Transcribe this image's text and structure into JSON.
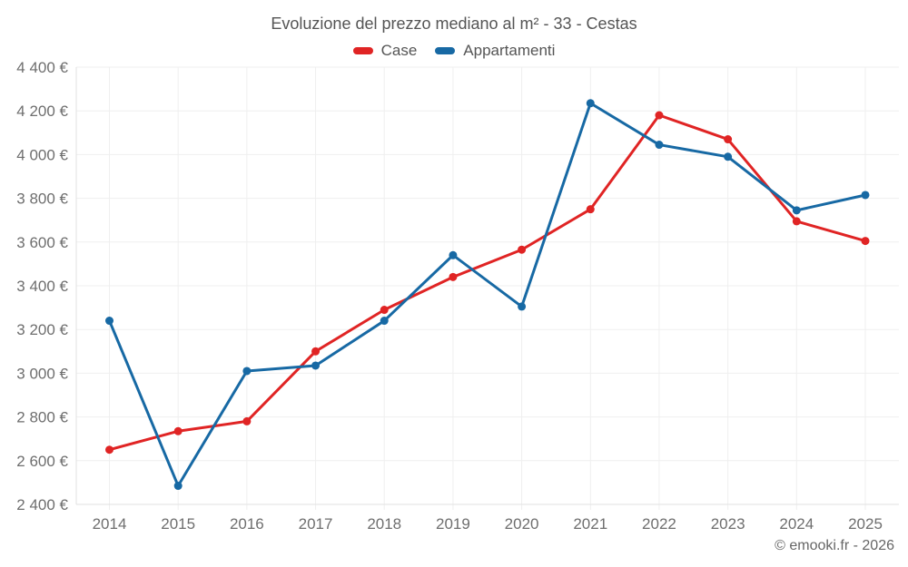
{
  "header": {
    "title": "Evoluzione del prezzo mediano al m² - 33 - Cestas"
  },
  "legend": {
    "items": [
      {
        "label": "Case",
        "color": "#e02424"
      },
      {
        "label": "Appartamenti",
        "color": "#1769a4"
      }
    ]
  },
  "footer": {
    "credit": "© emooki.fr - 2026"
  },
  "colors": {
    "case_series": "#e02424",
    "appartamenti_series": "#1769a4",
    "grid": "#efefef",
    "axis": "#e2e2e2",
    "tick_text": "#6e6e6e",
    "title_text": "#555555"
  },
  "chart_data": {
    "type": "line",
    "title": "Evoluzione del prezzo mediano al m² - 33 - Cestas",
    "x": [
      2014,
      2015,
      2016,
      2017,
      2018,
      2019,
      2020,
      2021,
      2022,
      2023,
      2024,
      2025
    ],
    "series": [
      {
        "name": "Case",
        "color": "#e02424",
        "values": [
          2650,
          2735,
          2780,
          3100,
          3290,
          3440,
          3565,
          3750,
          4180,
          4070,
          3695,
          3605
        ]
      },
      {
        "name": "Appartamenti",
        "color": "#1769a4",
        "values": [
          3240,
          2485,
          3010,
          3035,
          3240,
          3540,
          3305,
          4235,
          4045,
          3990,
          3745,
          3815
        ]
      }
    ],
    "xlabel": "",
    "ylabel": "",
    "ylim": [
      2400,
      4400
    ],
    "ytick_step": 200,
    "ytick_labels": [
      "2 400 €",
      "2 600 €",
      "2 800 €",
      "3 000 €",
      "3 200 €",
      "3 400 €",
      "3 600 €",
      "3 800 €",
      "4 000 €",
      "4 200 €",
      "4 400 €"
    ],
    "grid": true,
    "legend_position": "top",
    "currency": "€"
  }
}
